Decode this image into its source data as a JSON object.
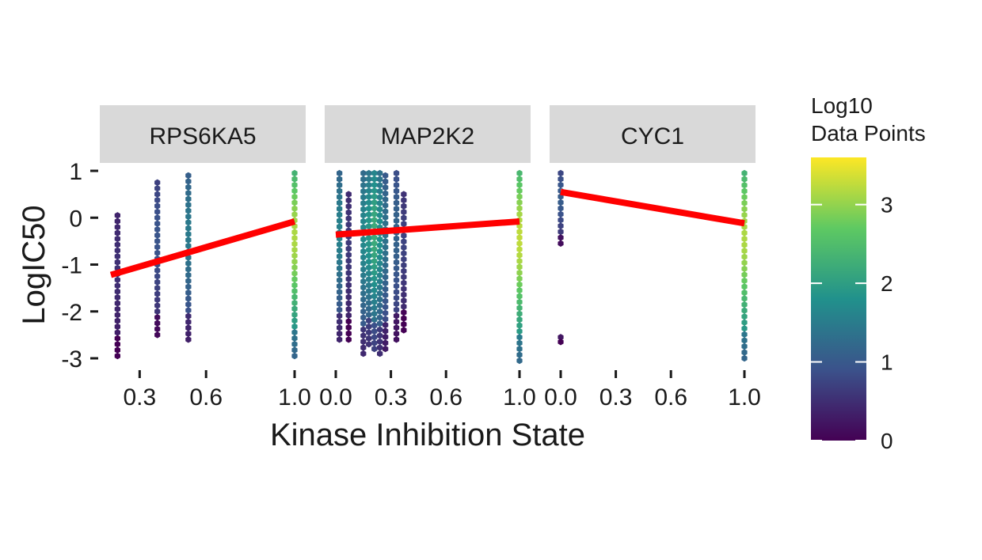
{
  "chart_data": {
    "type": "hexbin-faceted",
    "xlabel": "Kinase Inhibition State",
    "ylabel": "LogIC50",
    "ylim": [
      -3,
      1
    ],
    "y_ticks": [
      -3,
      -2,
      -1,
      0,
      1
    ],
    "y_tick_labels": [
      "-3",
      "-2",
      "-1",
      "0",
      "1"
    ],
    "x_tick_labels": [
      "0.0",
      "0.3",
      "0.6",
      "1.0"
    ],
    "facets": [
      {
        "name": "RPS6KA5",
        "xlim": [
          0.17,
          1.0
        ],
        "x_ticks": [
          0.3,
          0.6,
          1.0
        ],
        "x_tick_labels": [
          "0.3",
          "0.6",
          "1.0"
        ],
        "trend": {
          "x": [
            0.17,
            1.0
          ],
          "y": [
            -1.22,
            -0.08
          ]
        },
        "columns": [
          {
            "x": 0.2,
            "ymin": -2.95,
            "ymax": 0.05,
            "level": 0.5
          },
          {
            "x": 0.38,
            "ymin": -2.5,
            "ymax": 0.75,
            "level": 0.9
          },
          {
            "x": 0.52,
            "ymin": -2.6,
            "ymax": 0.9,
            "level": 1.4
          },
          {
            "x": 1.0,
            "ymin": -2.95,
            "ymax": 0.95,
            "level": 3.0
          }
        ]
      },
      {
        "name": "MAP2K2",
        "xlim": [
          0.0,
          1.0
        ],
        "x_ticks": [
          0.0,
          0.3,
          0.6,
          1.0
        ],
        "x_tick_labels": [
          "0.0",
          "0.3",
          "0.6",
          "1.0"
        ],
        "trend": {
          "x": [
            0.0,
            1.0
          ],
          "y": [
            -0.36,
            -0.08
          ]
        },
        "columns": [
          {
            "x": 0.02,
            "ymin": -2.6,
            "ymax": 0.95,
            "level": 1.5
          },
          {
            "x": 0.07,
            "ymin": -2.6,
            "ymax": 0.5,
            "level": 0.6
          },
          {
            "x": 0.15,
            "ymin": -2.9,
            "ymax": 0.95,
            "level": 1.6
          },
          {
            "x": 0.18,
            "ymin": -2.7,
            "ymax": 0.95,
            "level": 1.8
          },
          {
            "x": 0.21,
            "ymin": -2.8,
            "ymax": 0.95,
            "level": 2.1
          },
          {
            "x": 0.24,
            "ymin": -2.9,
            "ymax": 0.95,
            "level": 1.7
          },
          {
            "x": 0.27,
            "ymin": -2.8,
            "ymax": 0.9,
            "level": 1.3
          },
          {
            "x": 0.33,
            "ymin": -2.6,
            "ymax": 0.95,
            "level": 1.1
          },
          {
            "x": 0.37,
            "ymin": -2.4,
            "ymax": 0.5,
            "level": 0.7
          },
          {
            "x": 1.0,
            "ymin": -3.05,
            "ymax": 0.95,
            "level": 3.1
          }
        ]
      },
      {
        "name": "CYC1",
        "xlim": [
          0.0,
          1.0
        ],
        "x_ticks": [
          0.0,
          0.3,
          0.6,
          1.0
        ],
        "x_tick_labels": [
          "0.0",
          "0.3",
          "0.6",
          "1.0"
        ],
        "trend": {
          "x": [
            0.0,
            1.0
          ],
          "y": [
            0.55,
            -0.12
          ]
        },
        "trend_band": 0.07,
        "columns": [
          {
            "x": 0.0,
            "ymin": -0.55,
            "ymax": 0.95,
            "level": 1.0
          },
          {
            "x": 0.0,
            "ymin": -2.65,
            "ymax": -2.55,
            "level": 0.3
          },
          {
            "x": 1.0,
            "ymin": -3.0,
            "ymax": 0.95,
            "level": 3.0
          }
        ]
      }
    ],
    "legend": {
      "title_line1": "Log10",
      "title_line2": "Data Points",
      "range": [
        0,
        3.6
      ],
      "ticks": [
        0,
        1,
        2,
        3
      ],
      "tick_labels": [
        "0",
        "1",
        "2",
        "3"
      ],
      "colors": [
        "#440154",
        "#3b528b",
        "#21918c",
        "#5ec962",
        "#fde725"
      ]
    },
    "trend_color": "#ff0000",
    "strip_color": "#d9d9d9"
  }
}
